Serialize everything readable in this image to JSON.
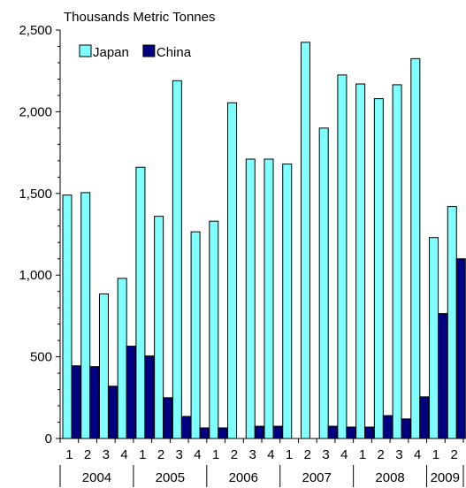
{
  "chart_data": {
    "type": "bar",
    "title": "",
    "ylabel": "Thousands Metric Tonnes",
    "xlabel": "",
    "ylim": [
      0,
      2500
    ],
    "yticks": [
      0,
      500,
      1000,
      1500,
      2000,
      2500
    ],
    "ytick_labels": [
      "0",
      "500",
      "1,000",
      "1,500",
      "2,000",
      "2,500"
    ],
    "categories": [
      "1",
      "2",
      "3",
      "4",
      "1",
      "2",
      "3",
      "4",
      "1",
      "2",
      "3",
      "4",
      "1",
      "2",
      "3",
      "4",
      "1",
      "2",
      "3",
      "4",
      "1",
      "2"
    ],
    "year_groups": [
      {
        "label": "2004",
        "count": 4
      },
      {
        "label": "2005",
        "count": 4
      },
      {
        "label": "2006",
        "count": 4
      },
      {
        "label": "2007",
        "count": 4
      },
      {
        "label": "2008",
        "count": 4
      },
      {
        "label": "2009",
        "count": 2
      }
    ],
    "legend_position": "top-left",
    "grid": false,
    "series": [
      {
        "name": "Japan",
        "color": "#80ffff",
        "values": [
          1490,
          1505,
          885,
          980,
          1660,
          1360,
          2190,
          1265,
          1330,
          2055,
          1710,
          1710,
          1680,
          2425,
          1900,
          2225,
          2170,
          2080,
          2165,
          2325,
          1230,
          1420
        ]
      },
      {
        "name": "China",
        "color": "#000080",
        "values": [
          445,
          440,
          320,
          565,
          505,
          250,
          135,
          65,
          65,
          0,
          75,
          75,
          0,
          0,
          75,
          70,
          70,
          140,
          120,
          255,
          765,
          1100
        ]
      }
    ]
  }
}
